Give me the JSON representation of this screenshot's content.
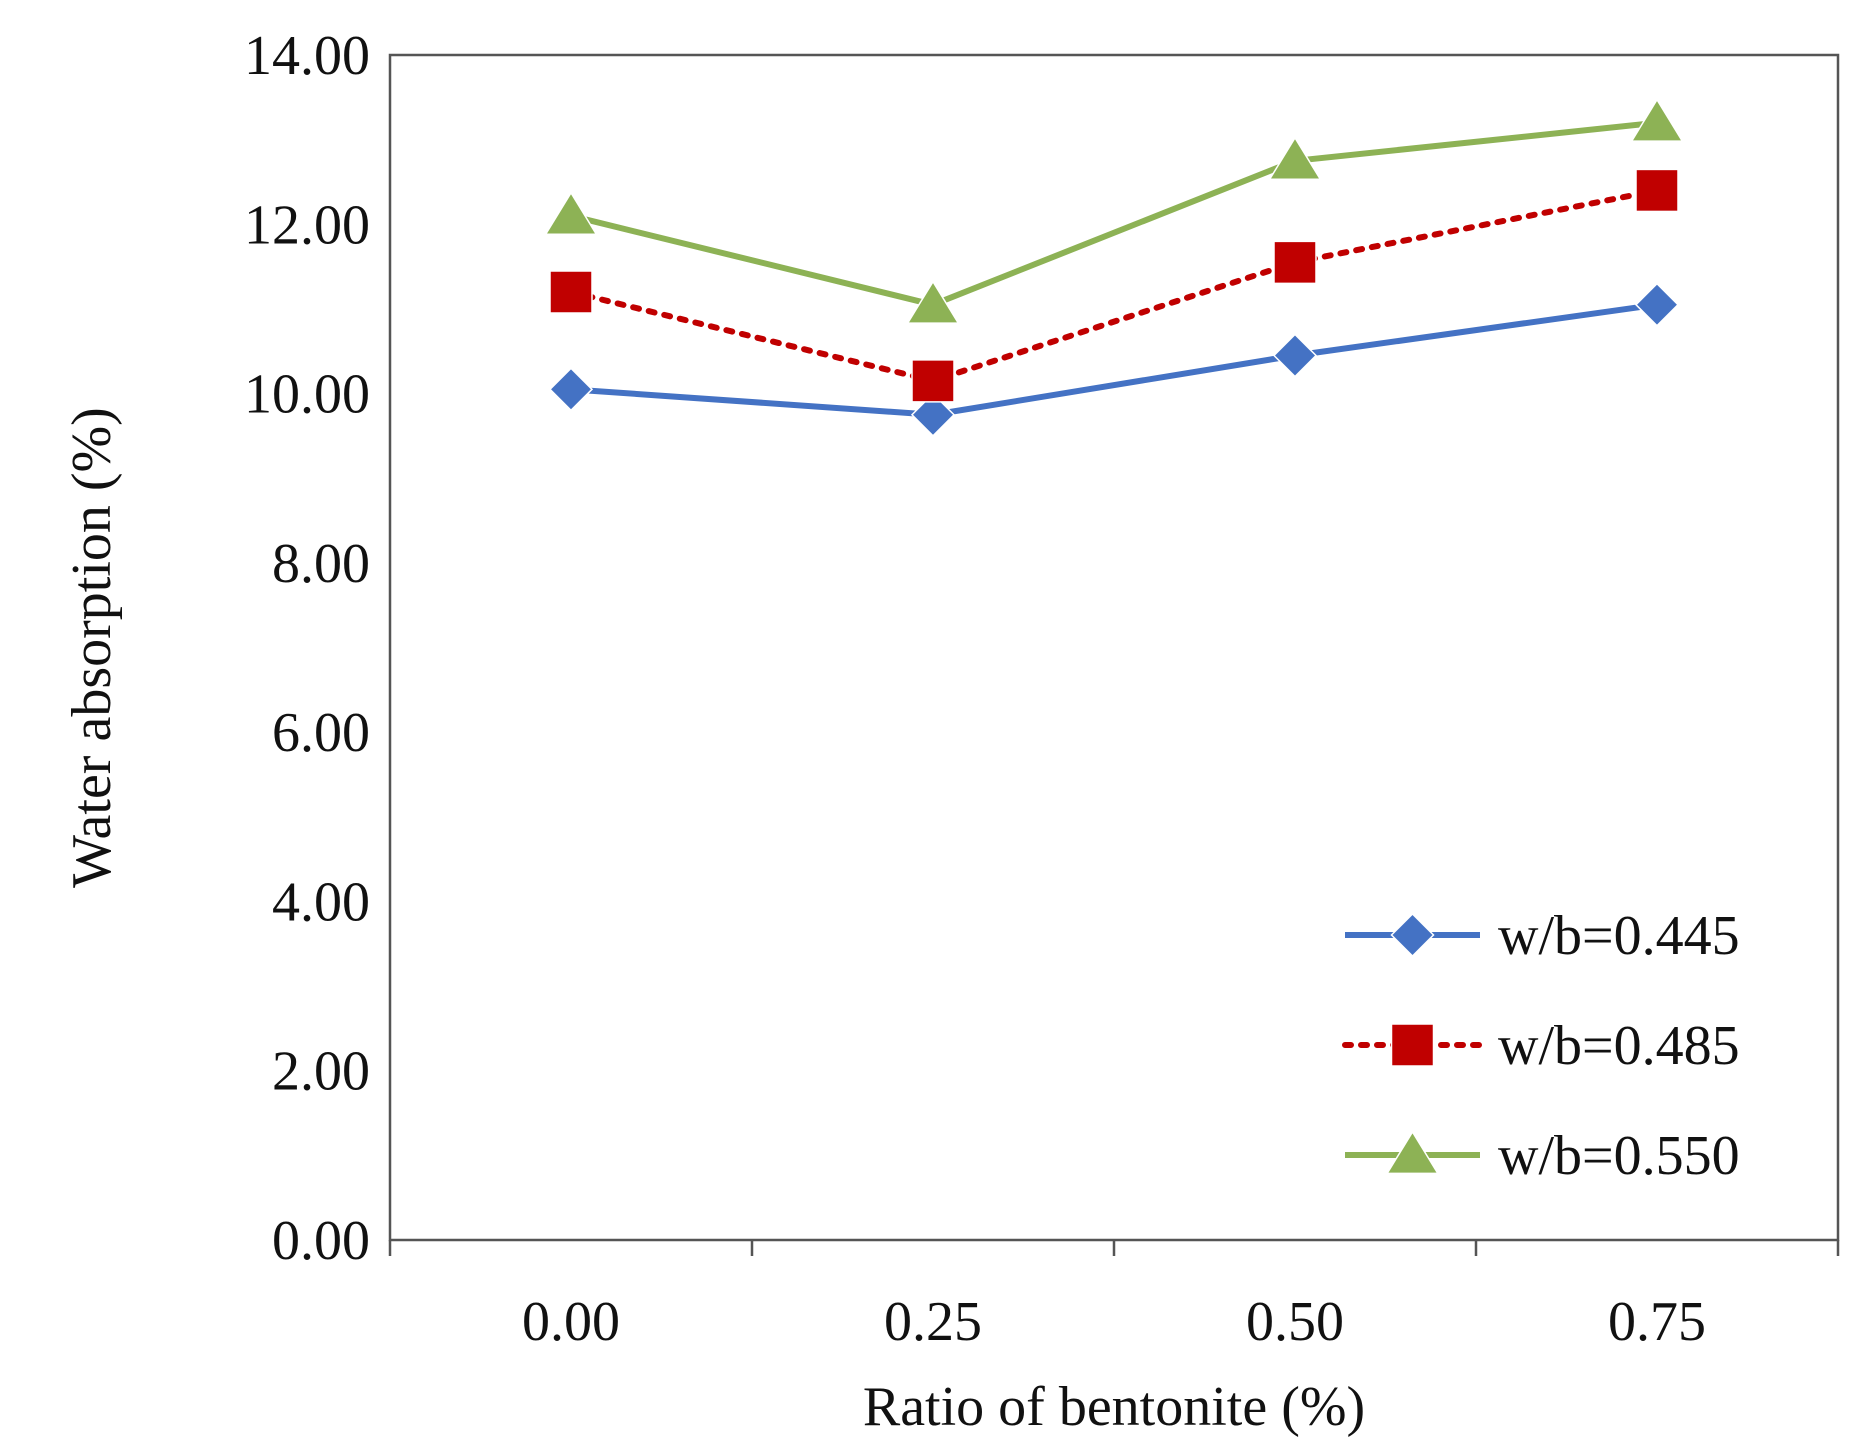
{
  "chart_data": {
    "type": "line",
    "title": "",
    "xlabel": "Ratio of bentonite (%)",
    "ylabel": "Water absorption (%)",
    "categories": [
      "0.00",
      "0.25",
      "0.50",
      "0.75"
    ],
    "ylim": [
      0,
      14
    ],
    "yticks": [
      "0.00",
      "2.00",
      "4.00",
      "6.00",
      "8.00",
      "10.00",
      "12.00",
      "14.00"
    ],
    "grid": false,
    "legend_position": "bottom-right",
    "series": [
      {
        "name": "w/b=0.445",
        "values": [
          10.05,
          9.75,
          10.45,
          11.05
        ],
        "color": "#4472C4",
        "marker": "diamond",
        "line_style": "solid"
      },
      {
        "name": "w/b=0.485",
        "values": [
          11.2,
          10.15,
          11.55,
          12.4
        ],
        "color": "#C00000",
        "marker": "square",
        "line_style": "dotted"
      },
      {
        "name": "w/b=0.550",
        "values": [
          12.1,
          11.05,
          12.75,
          13.2
        ],
        "color": "#8DB255",
        "marker": "triangle",
        "line_style": "solid"
      }
    ]
  }
}
